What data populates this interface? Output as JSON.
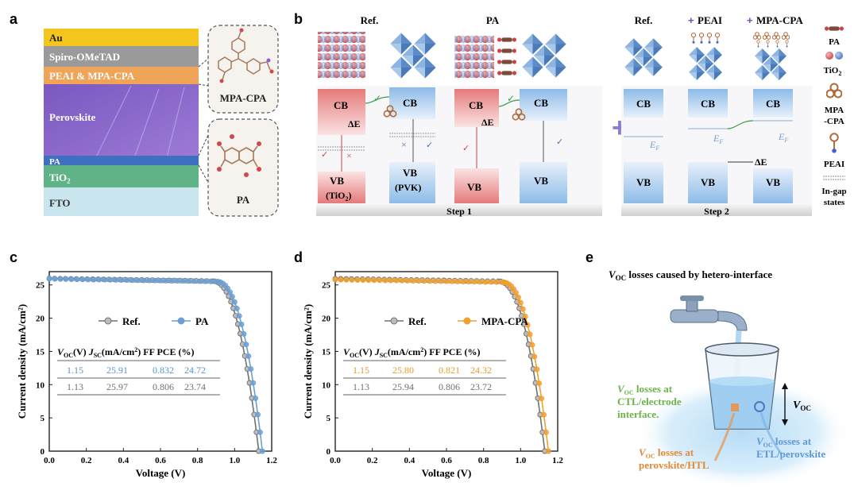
{
  "panels": {
    "a": {
      "label": "a",
      "layers": [
        "Au",
        "Spiro-OMeTAD",
        "PEAI & MPA-CPA",
        "Perovskite",
        "PA",
        "TiO",
        "FTO"
      ],
      "tio_sub": "2",
      "molecule_top": "MPA-CPA",
      "molecule_bottom": "PA"
    },
    "b": {
      "label": "b",
      "step1": {
        "ref_title": "Ref.",
        "pa_title": "PA",
        "cb": "CB",
        "vb": "VB",
        "vb_tio2": "(TiO",
        "vb_tio2_sub": "2",
        "vb_tio2_close": ")",
        "vb_pvk": "(PVK)",
        "delta_e": "ΔE",
        "check": "✓",
        "cross": "×",
        "step_label": "Step 1"
      },
      "plus": "+",
      "step2": {
        "ref_title": "Ref.",
        "peai_title": "PEAI",
        "mpacpa_title": "MPA-CPA",
        "title_plus": "+",
        "cb": "CB",
        "vb": "VB",
        "ef": "E",
        "ef_sub": "F",
        "delta_e": "ΔE",
        "step_label": "Step 2"
      },
      "legend": {
        "pa": "PA",
        "tio2": "TiO",
        "tio2_sub": "2",
        "mpacpa_1": "MPA",
        "mpacpa_2": "-CPA",
        "peai": "PEAI",
        "ingap_1": "In-gap",
        "ingap_2": "states"
      }
    },
    "c": {
      "label": "c"
    },
    "d": {
      "label": "d"
    },
    "e": {
      "label": "e",
      "title_v": "V",
      "title_sub": "OC",
      "title_rest": " losses caused by hetero-interface",
      "ctl_1": "losses at",
      "ctl_2": "CTL/electrode",
      "ctl_3": "interface.",
      "htl_1": "losses at",
      "htl_2": "perovskite/HTL",
      "etl_1": "losses at",
      "etl_2": "ETL/perovskite",
      "voc_v": "V",
      "voc_sub": "OC"
    }
  },
  "chart_data": [
    {
      "type": "line",
      "panel": "c",
      "xlabel": "Voltage (V)",
      "ylabel": "Current density (mA/cm²)",
      "xlim": [
        0.0,
        1.2
      ],
      "ylim": [
        0,
        27
      ],
      "xticks": [
        "0.0",
        "0.2",
        "0.4",
        "0.6",
        "0.8",
        "1.0",
        "1.2"
      ],
      "yticks": [
        "0",
        "5",
        "10",
        "15",
        "20",
        "25"
      ],
      "series": [
        {
          "name": "Ref.",
          "color": "#707070",
          "jsc": 25.97,
          "voc": 1.13,
          "knee": 0.88
        },
        {
          "name": "PA",
          "color": "#6b9fd4",
          "jsc": 25.91,
          "voc": 1.15,
          "knee": 0.9
        }
      ],
      "table": {
        "headers": [
          "V",
          "(V)",
          "J",
          "(mA/cm",
          ") FF",
          "PCE (%)"
        ],
        "header_subs": [
          "OC",
          "SC",
          "2"
        ],
        "rows": [
          {
            "voc": "1.15",
            "jsc": "25.91",
            "ff": "0.832",
            "pce": "24.72",
            "color": "#5b93cf"
          },
          {
            "voc": "1.13",
            "jsc": "25.97",
            "ff": "0.806",
            "pce": "23.74",
            "color": "#707070"
          }
        ]
      }
    },
    {
      "type": "line",
      "panel": "d",
      "xlabel": "Voltage (V)",
      "ylabel": "Current density (mA/cm²)",
      "xlim": [
        0.0,
        1.2
      ],
      "ylim": [
        0,
        27
      ],
      "xticks": [
        "0.0",
        "0.2",
        "0.4",
        "0.6",
        "0.8",
        "1.0",
        "1.2"
      ],
      "yticks": [
        "0",
        "5",
        "10",
        "15",
        "20",
        "25"
      ],
      "series": [
        {
          "name": "Ref.",
          "color": "#707070",
          "jsc": 25.94,
          "voc": 1.13,
          "knee": 0.88
        },
        {
          "name": "MPA-CPA",
          "color": "#f0a030",
          "jsc": 25.8,
          "voc": 1.15,
          "knee": 0.9
        }
      ],
      "table": {
        "headers": [
          "V",
          "(V)",
          "J",
          "(mA/cm",
          ") FF",
          "PCE (%)"
        ],
        "header_subs": [
          "OC",
          "SC",
          "2"
        ],
        "rows": [
          {
            "voc": "1.15",
            "jsc": "25.80",
            "ff": "0.821",
            "pce": "24.32",
            "color": "#e69a2e"
          },
          {
            "voc": "1.13",
            "jsc": "25.94",
            "ff": "0.806",
            "pce": "23.72",
            "color": "#707070"
          }
        ]
      }
    }
  ]
}
